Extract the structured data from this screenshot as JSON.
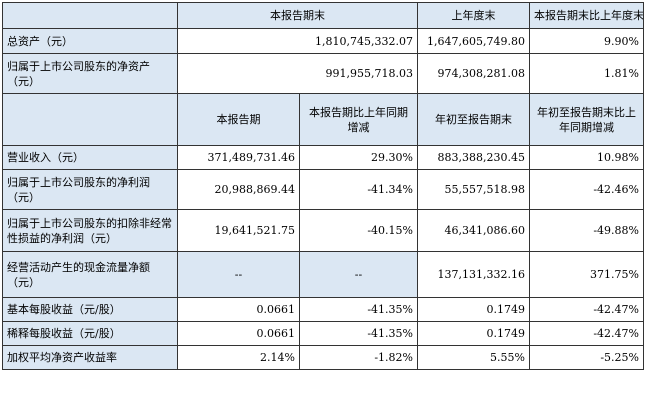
{
  "top_header": [
    "",
    "本报告期末",
    "上年度末",
    "本报告期末比上年度末增减"
  ],
  "top_rows": [
    {
      "label": "总资产（元）",
      "v1": "1,810,745,332.07",
      "v2": "1,647,605,749.80",
      "v3": "9.90%"
    },
    {
      "label": "归属于上市公司股东的净资产（元）",
      "v1": "991,955,718.03",
      "v2": "974,308,281.08",
      "v3": "1.81%"
    }
  ],
  "mid_header": [
    "",
    "本报告期",
    "本报告期比上年同期增减",
    "年初至报告期末",
    "年初至报告期末比上年同期增减"
  ],
  "mid_rows": [
    {
      "label": "营业收入（元）",
      "v1": "371,489,731.46",
      "v2": "29.30%",
      "v3": "883,388,230.45",
      "v4": "10.98%"
    },
    {
      "label": "归属于上市公司股东的净利润（元）",
      "v1": "20,988,869.44",
      "v2": "-41.34%",
      "v3": "55,557,518.98",
      "v4": "-42.46%"
    },
    {
      "label": "归属于上市公司股东的扣除非经常性损益的净利润（元）",
      "v1": "19,641,521.75",
      "v2": "-40.15%",
      "v3": "46,341,086.60",
      "v4": "-49.88%"
    },
    {
      "label": "经营活动产生的现金流量净额（元）",
      "v1": "--",
      "v2": "--",
      "v3": "137,131,332.16",
      "v4": "371.75%"
    },
    {
      "label": "基本每股收益（元/股）",
      "v1": "0.0661",
      "v2": "-41.35%",
      "v3": "0.1749",
      "v4": "-42.47%"
    },
    {
      "label": "稀释每股收益（元/股）",
      "v1": "0.0661",
      "v2": "-41.35%",
      "v3": "0.1749",
      "v4": "-42.47%"
    },
    {
      "label": "加权平均净资产收益率",
      "v1": "2.14%",
      "v2": "-1.82%",
      "v3": "5.55%",
      "v4": "-5.25%"
    }
  ]
}
